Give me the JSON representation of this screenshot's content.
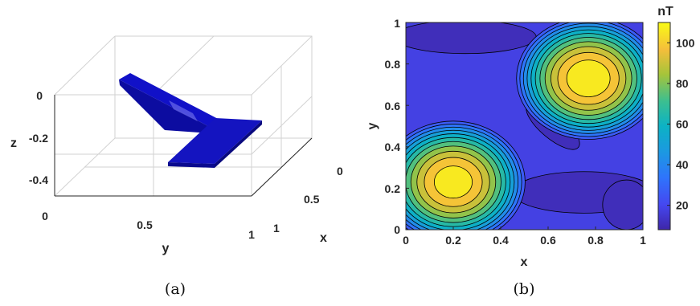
{
  "panels": {
    "a": {
      "caption": "(a)",
      "chart_data": {
        "type": "3d-box-model",
        "xlabel": "x",
        "ylabel": "y",
        "zlabel": "z",
        "x_ticks": [
          "0",
          "0.5",
          "1"
        ],
        "y_ticks": [
          "0",
          "0.5",
          "1"
        ],
        "z_ticks": [
          "0",
          "-0.2",
          "-0.4"
        ],
        "xlim": [
          0,
          1
        ],
        "ylim": [
          0,
          1
        ],
        "zlim": [
          -0.5,
          0.1
        ],
        "body_color": "#1010b4",
        "bodies": [
          {
            "shape": "dipping-slab",
            "top_depth": 0,
            "bottom_depth": -0.2
          },
          {
            "shape": "horizontal-slab",
            "top_depth": -0.2
          }
        ]
      }
    },
    "b": {
      "caption": "(b)",
      "chart_data": {
        "type": "contour",
        "xlabel": "x",
        "ylabel": "y",
        "xlim": [
          0,
          1
        ],
        "ylim": [
          0,
          1
        ],
        "x_ticks": [
          "0",
          "0.2",
          "0.4",
          "0.6",
          "0.8",
          "1"
        ],
        "y_ticks": [
          "0",
          "0.2",
          "0.4",
          "0.6",
          "0.8",
          "1"
        ],
        "colorbar": {
          "title": "nT",
          "range": [
            8,
            110
          ],
          "ticks": [
            "20",
            "40",
            "60",
            "80",
            "100"
          ],
          "colormap": "parula"
        },
        "peaks": [
          {
            "x": 0.2,
            "y": 0.23,
            "value": 108
          },
          {
            "x": 0.77,
            "y": 0.73,
            "value": 110
          }
        ],
        "background_value": 18,
        "minimum_value": 8
      }
    }
  }
}
